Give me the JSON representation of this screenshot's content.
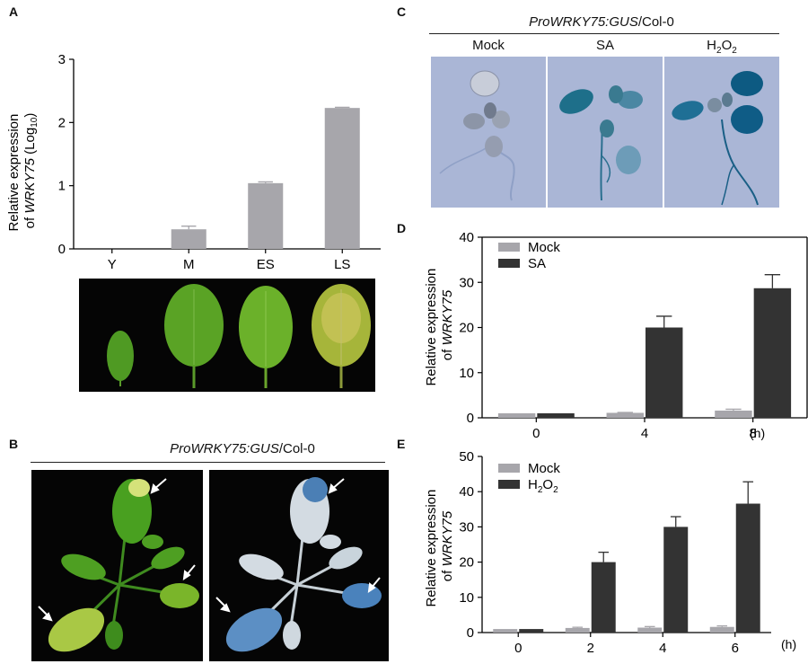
{
  "panels": {
    "A": {
      "letter": "A",
      "ylabel_line1": "Relative expression",
      "ylabel_line2_prefix": "of ",
      "ylabel_gene": "WRKY75",
      "ylabel_suffix": " (Log",
      "ylabel_sub": "10",
      "ylabel_close": ")",
      "bar_color": "#a7a6ab"
    },
    "B": {
      "letter": "B",
      "header_italic": "ProWRKY75:GUS",
      "header_plain": "/Col-0"
    },
    "C": {
      "letter": "C",
      "header_italic": "ProWRKY75:GUS",
      "header_plain": "/Col-0",
      "columns": {
        "mock": "Mock",
        "sa": "SA",
        "h2o2_main": "H",
        "h2o2_sub1": "2",
        "h2o2_mid": "O",
        "h2o2_sub2": "2"
      }
    },
    "D": {
      "letter": "D",
      "ylabel_line1": "Relative expression",
      "ylabel_line2_prefix": "of ",
      "ylabel_gene": "WRKY75",
      "legend_mock": "Mock",
      "legend_sa": "SA",
      "unit": "(h)",
      "mock_color": "#a7a6ab",
      "treat_color": "#333333"
    },
    "E": {
      "letter": "E",
      "ylabel_line1": "Relative expression",
      "ylabel_line2_prefix": "of ",
      "ylabel_gene": "WRKY75",
      "legend_mock": "Mock",
      "legend_h2o2_main": "H",
      "legend_h2o2_sub1": "2",
      "legend_h2o2_mid": "O",
      "legend_h2o2_sub2": "2",
      "unit": "(h)",
      "mock_color": "#a7a6ab",
      "treat_color": "#333333"
    }
  },
  "chart_data": [
    {
      "id": "A",
      "type": "bar",
      "categories": [
        "Y",
        "M",
        "ES",
        "LS"
      ],
      "values": [
        0.0,
        0.31,
        1.04,
        2.23
      ],
      "errors": [
        0.0,
        0.05,
        0.02,
        0.01
      ],
      "ylim": [
        0,
        3
      ],
      "yticks": [
        0,
        1,
        2,
        3
      ]
    },
    {
      "id": "D",
      "type": "bar",
      "categories": [
        "0",
        "4",
        "8"
      ],
      "series": [
        {
          "name": "Mock",
          "values": [
            1.0,
            1.1,
            1.6
          ],
          "errors": [
            0.0,
            0.1,
            0.3
          ]
        },
        {
          "name": "SA",
          "values": [
            1.0,
            20.0,
            28.7
          ],
          "errors": [
            0.0,
            2.5,
            3.0
          ]
        }
      ],
      "ylim": [
        0,
        40
      ],
      "yticks": [
        0,
        10,
        20,
        30,
        40
      ]
    },
    {
      "id": "E",
      "type": "bar",
      "categories": [
        "0",
        "2",
        "4",
        "6"
      ],
      "series": [
        {
          "name": "Mock",
          "values": [
            1.0,
            1.3,
            1.4,
            1.6
          ],
          "errors": [
            0.0,
            0.2,
            0.3,
            0.3
          ]
        },
        {
          "name": "H2O2",
          "values": [
            1.0,
            20.0,
            30.0,
            36.6
          ],
          "errors": [
            0.0,
            2.8,
            2.9,
            6.2
          ]
        }
      ],
      "ylim": [
        0,
        50
      ],
      "yticks": [
        0,
        10,
        20,
        30,
        40,
        50
      ]
    }
  ]
}
